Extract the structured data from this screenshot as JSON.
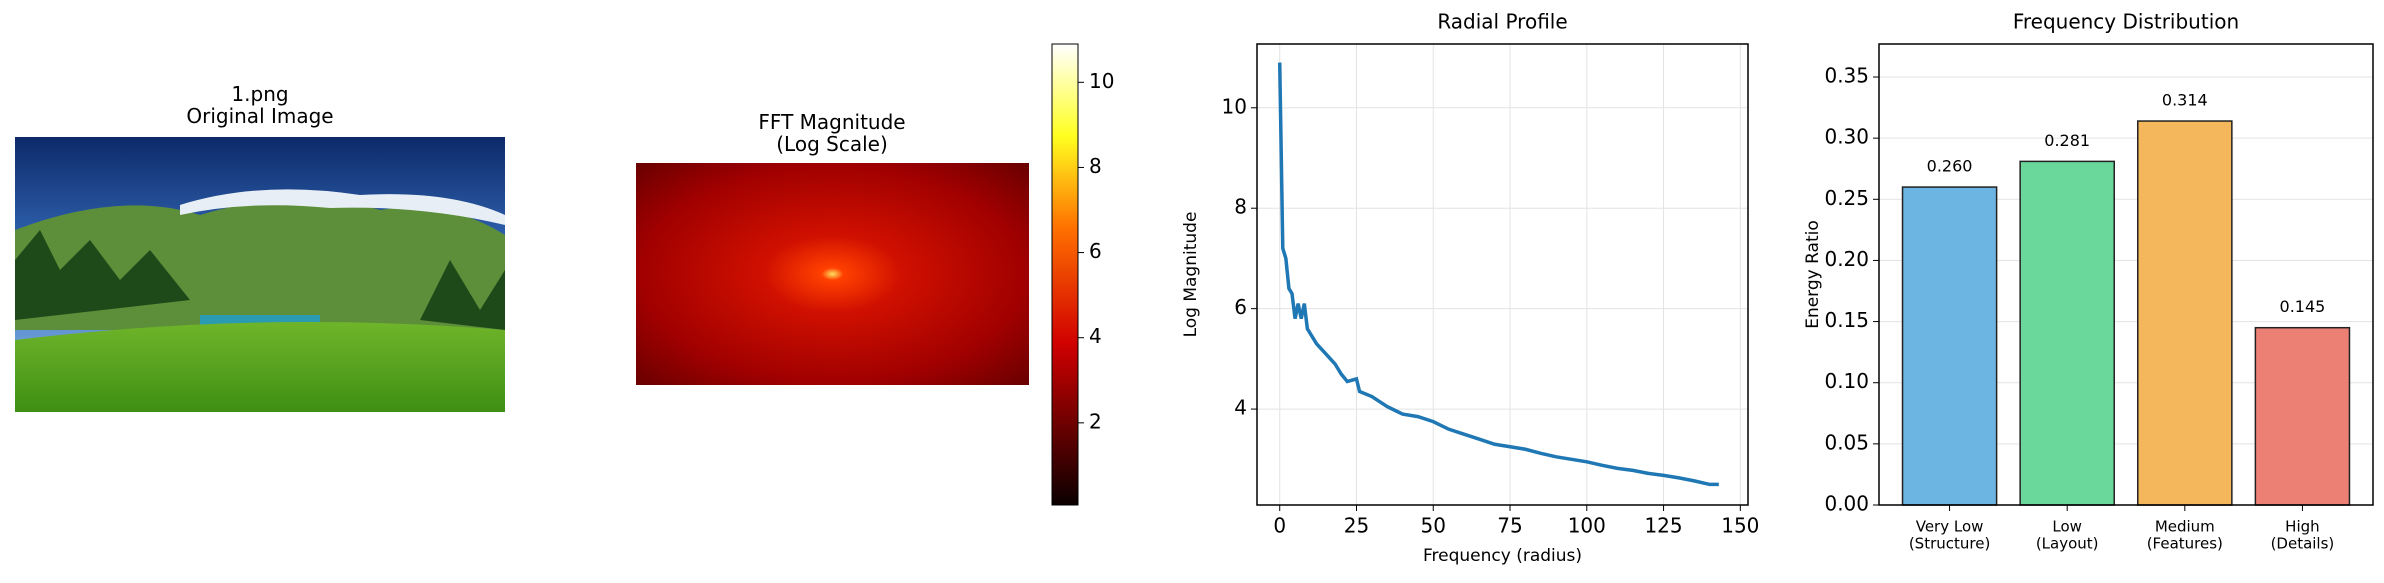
{
  "chart_data": [
    {
      "type": "image",
      "title": "1.png\nOriginal Image"
    },
    {
      "type": "image",
      "title": "FFT Magnitude\n(Log Scale)",
      "colorbar": {
        "lim": [
          0.07,
          10.9
        ],
        "ticks": [
          2,
          4,
          6,
          8,
          10
        ]
      }
    },
    {
      "type": "line",
      "title": "Radial Profile",
      "xlabel": "Frequency (radius)",
      "ylabel": "Log Magnitude",
      "x": [
        0,
        1,
        2,
        3,
        4,
        5,
        6,
        7,
        8,
        9,
        10,
        12,
        15,
        18,
        20,
        22,
        25,
        26,
        30,
        35,
        40,
        45,
        50,
        55,
        60,
        65,
        70,
        75,
        80,
        85,
        90,
        95,
        100,
        105,
        110,
        115,
        120,
        125,
        130,
        135,
        140,
        143
      ],
      "values": [
        10.9,
        7.2,
        7.0,
        6.4,
        6.3,
        5.8,
        6.1,
        5.8,
        6.1,
        5.6,
        5.5,
        5.3,
        5.1,
        4.9,
        4.7,
        4.55,
        4.6,
        4.35,
        4.25,
        4.05,
        3.9,
        3.85,
        3.75,
        3.6,
        3.5,
        3.4,
        3.3,
        3.25,
        3.2,
        3.12,
        3.05,
        3.0,
        2.95,
        2.88,
        2.82,
        2.78,
        2.72,
        2.68,
        2.63,
        2.57,
        2.5,
        2.5
      ],
      "color": "#1f77b4",
      "xlim": [
        -7.4,
        152.5
      ],
      "ylim": [
        2.09,
        11.27
      ],
      "xticks": [
        0,
        25,
        50,
        75,
        100,
        125,
        150
      ],
      "yticks": [
        4,
        6,
        8,
        10
      ],
      "grid": true
    },
    {
      "type": "bar",
      "title": "Frequency Distribution",
      "ylabel": "Energy Ratio",
      "categories": [
        "Very Low\n(Structure)",
        "Low\n(Layout)",
        "Medium\n(Features)",
        "High\n(Details)"
      ],
      "values": [
        0.26,
        0.281,
        0.314,
        0.145
      ],
      "value_labels": [
        "0.260",
        "0.281",
        "0.314",
        "0.145"
      ],
      "colors": [
        "#6cb4e2",
        "#6bd89b",
        "#f4b75c",
        "#ec8074"
      ],
      "ylim": [
        0,
        0.377
      ],
      "yticks": [
        {
          "value": 0,
          "label": "0.00"
        },
        {
          "value": 0.05,
          "label": "0.05"
        },
        {
          "value": 0.1,
          "label": "0.10"
        },
        {
          "value": 0.15,
          "label": "0.15"
        },
        {
          "value": 0.2,
          "label": "0.20"
        },
        {
          "value": 0.25,
          "label": "0.25"
        },
        {
          "value": 0.3,
          "label": "0.30"
        },
        {
          "value": 0.35,
          "label": "0.35"
        }
      ],
      "grid": true
    }
  ]
}
